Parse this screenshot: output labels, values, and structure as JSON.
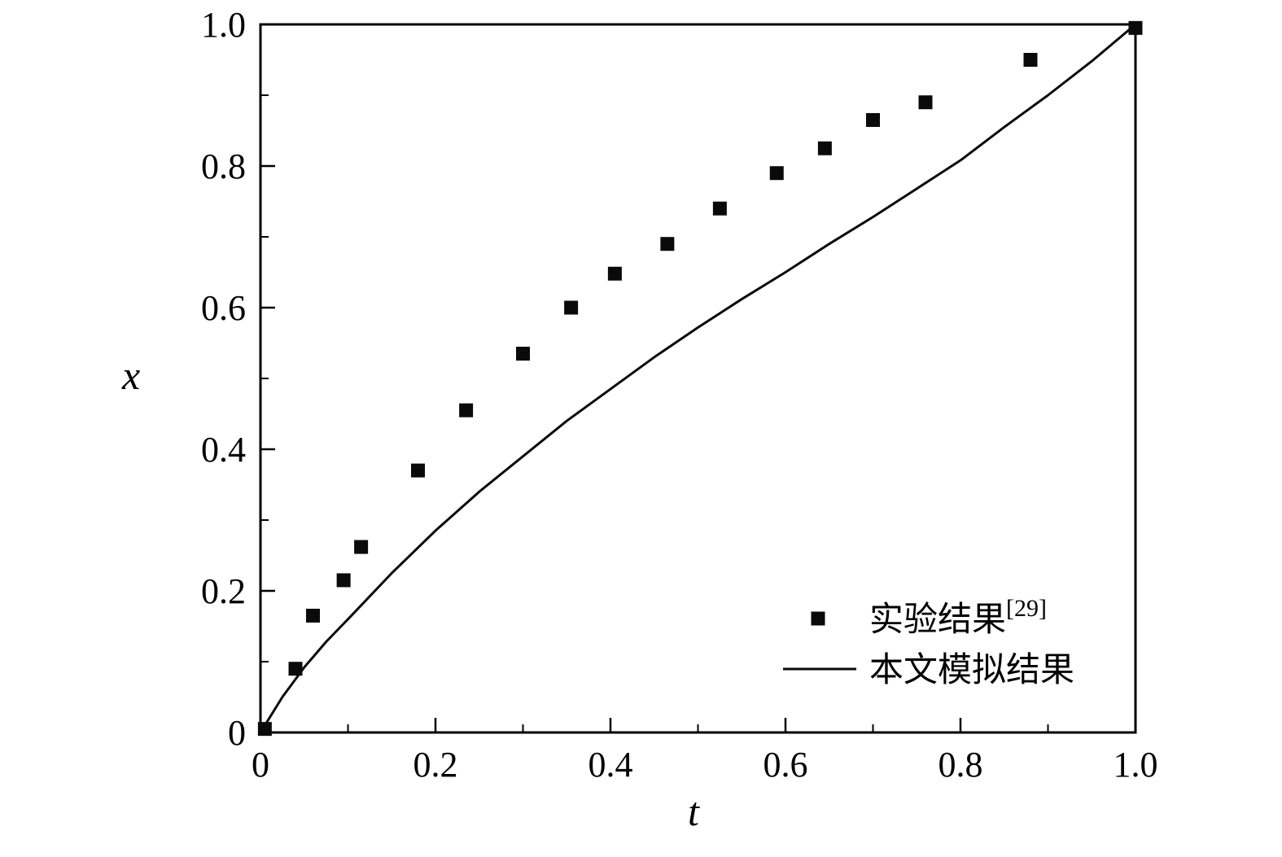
{
  "page": {
    "background": "#ffffff"
  },
  "chart_data": {
    "type": "scatter",
    "title": "",
    "xlabel": "t",
    "ylabel": "x",
    "xlim": [
      0,
      1.0
    ],
    "ylim": [
      0,
      1.0
    ],
    "x_ticks": [
      0,
      0.2,
      0.4,
      0.6,
      0.8,
      1.0
    ],
    "x_tick_labels": [
      "0",
      "0.2",
      "0.4",
      "0.6",
      "0.8",
      "1.0"
    ],
    "y_ticks": [
      0,
      0.2,
      0.4,
      0.6,
      0.8,
      1.0
    ],
    "y_tick_labels": [
      "0",
      "0.2",
      "0.4",
      "0.6",
      "0.8",
      "1.0"
    ],
    "minor_tick_step": 0.1,
    "grid": false,
    "legend_position": "inside lower-right",
    "axis_color": "#000000",
    "series": [
      {
        "name": "实验结果",
        "name_superscript": "[29]",
        "type": "scatter",
        "marker": "filled-square",
        "color": "#0a0a0a",
        "points": [
          [
            0.005,
            0.005
          ],
          [
            0.04,
            0.09
          ],
          [
            0.06,
            0.165
          ],
          [
            0.095,
            0.215
          ],
          [
            0.115,
            0.262
          ],
          [
            0.18,
            0.37
          ],
          [
            0.235,
            0.455
          ],
          [
            0.3,
            0.535
          ],
          [
            0.355,
            0.6
          ],
          [
            0.405,
            0.648
          ],
          [
            0.465,
            0.69
          ],
          [
            0.525,
            0.74
          ],
          [
            0.59,
            0.79
          ],
          [
            0.645,
            0.825
          ],
          [
            0.7,
            0.865
          ],
          [
            0.76,
            0.89
          ],
          [
            0.88,
            0.95
          ],
          [
            1.0,
            0.995
          ]
        ]
      },
      {
        "name": "本文模拟结果",
        "type": "line",
        "color": "#0a0a0a",
        "points": [
          [
            0,
            0
          ],
          [
            0.025,
            0.05
          ],
          [
            0.05,
            0.092
          ],
          [
            0.075,
            0.128
          ],
          [
            0.1,
            0.16
          ],
          [
            0.15,
            0.225
          ],
          [
            0.2,
            0.285
          ],
          [
            0.25,
            0.34
          ],
          [
            0.3,
            0.39
          ],
          [
            0.35,
            0.44
          ],
          [
            0.4,
            0.485
          ],
          [
            0.45,
            0.53
          ],
          [
            0.5,
            0.572
          ],
          [
            0.55,
            0.612
          ],
          [
            0.6,
            0.65
          ],
          [
            0.65,
            0.69
          ],
          [
            0.7,
            0.728
          ],
          [
            0.75,
            0.768
          ],
          [
            0.8,
            0.808
          ],
          [
            0.85,
            0.855
          ],
          [
            0.9,
            0.9
          ],
          [
            0.95,
            0.948
          ],
          [
            1.0,
            1.0
          ]
        ]
      }
    ]
  }
}
